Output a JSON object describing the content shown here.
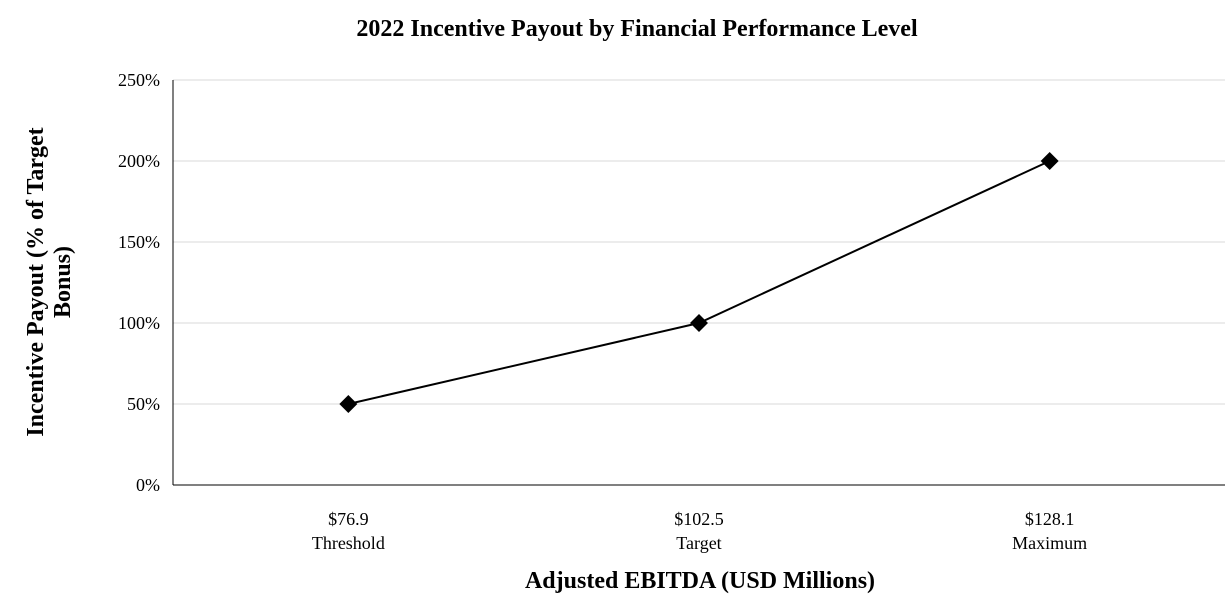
{
  "chart_data": {
    "type": "line",
    "title": "2022 Incentive Payout by Financial Performance Level",
    "xlabel": "Adjusted EBITDA (USD Millions)",
    "ylabel_lines": [
      "Incentive Payout (% of Target",
      "Bonus)"
    ],
    "categories": [
      {
        "value": "$76.9",
        "label": "Threshold"
      },
      {
        "value": "$102.5",
        "label": "Target"
      },
      {
        "value": "$128.1",
        "label": "Maximum"
      }
    ],
    "series": [
      {
        "values": [
          50,
          100,
          200
        ],
        "color": "#000000",
        "marker": "diamond"
      }
    ],
    "ylim": [
      0,
      250
    ],
    "yticks": [
      "0%",
      "50%",
      "100%",
      "150%",
      "200%",
      "250%"
    ],
    "ytick_values": [
      0,
      50,
      100,
      150,
      200,
      250
    ],
    "grid": true,
    "grid_color": "#d9d9d9",
    "legend": "none"
  }
}
